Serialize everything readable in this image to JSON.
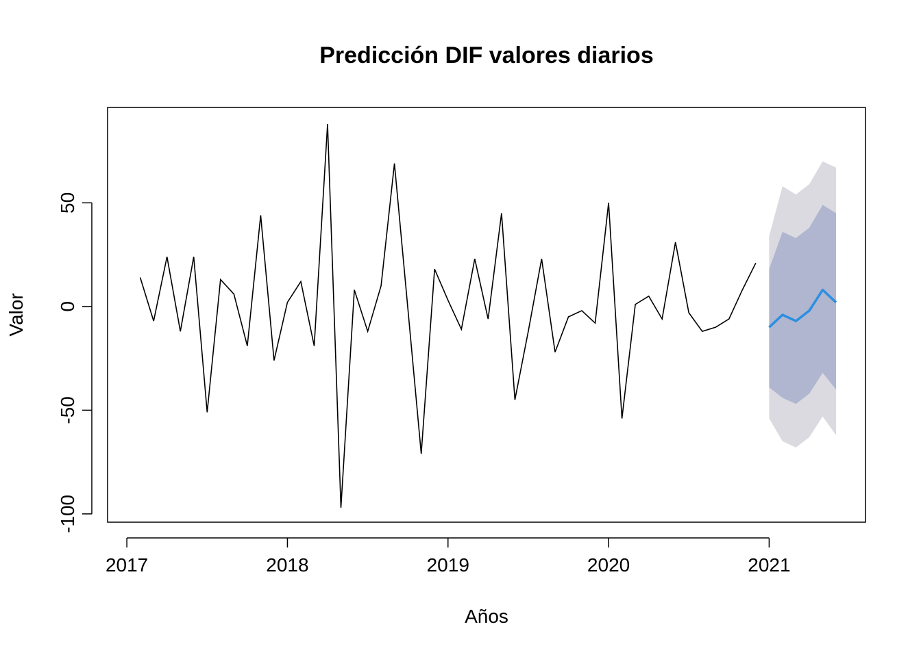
{
  "chart_data": {
    "type": "line",
    "title": "Predicción DIF valores diarios",
    "xlabel": "Años",
    "ylabel": "Valor",
    "xlim": [
      2016.88,
      2021.6
    ],
    "ylim": [
      -104,
      96
    ],
    "x_ticks": [
      2017,
      2018,
      2019,
      2020,
      2021
    ],
    "x_tick_labels": [
      "2017",
      "2018",
      "2019",
      "2020",
      "2021"
    ],
    "y_ticks": [
      -100,
      -50,
      0,
      50
    ],
    "y_tick_labels": [
      "-100",
      "-50",
      "0",
      "50"
    ],
    "grid": false,
    "legend": "none",
    "colors": {
      "history": "#000000",
      "forecast": "#2b8fe0",
      "band_95": "#dadae0",
      "band_80": "#b0b5d0"
    },
    "history": {
      "x_start": 2017.0833,
      "step": 0.0833333,
      "values": [
        14,
        -7,
        24,
        -12,
        24,
        -51,
        13,
        6,
        -19,
        44,
        -26,
        2,
        12,
        -19,
        88,
        -97,
        8,
        -12,
        10,
        69,
        -1,
        -71,
        18,
        3,
        -11,
        23,
        -6,
        45,
        -45,
        -12,
        23,
        -22,
        -5,
        -2,
        -8,
        50,
        -54,
        1,
        5,
        -6,
        31,
        -3,
        -12,
        -10,
        -6,
        8,
        21
      ]
    },
    "forecast": {
      "x_start": 2021.0,
      "step": 0.0833333,
      "mean": [
        -10,
        -4,
        -7,
        -2,
        8,
        2
      ],
      "lo80": [
        -39,
        -44,
        -47,
        -42,
        -32,
        -40
      ],
      "hi80": [
        18,
        36,
        33,
        38,
        49,
        45
      ],
      "lo95": [
        -54,
        -65,
        -68,
        -63,
        -53,
        -62
      ],
      "hi95": [
        34,
        58,
        54,
        59,
        70,
        67
      ]
    }
  }
}
